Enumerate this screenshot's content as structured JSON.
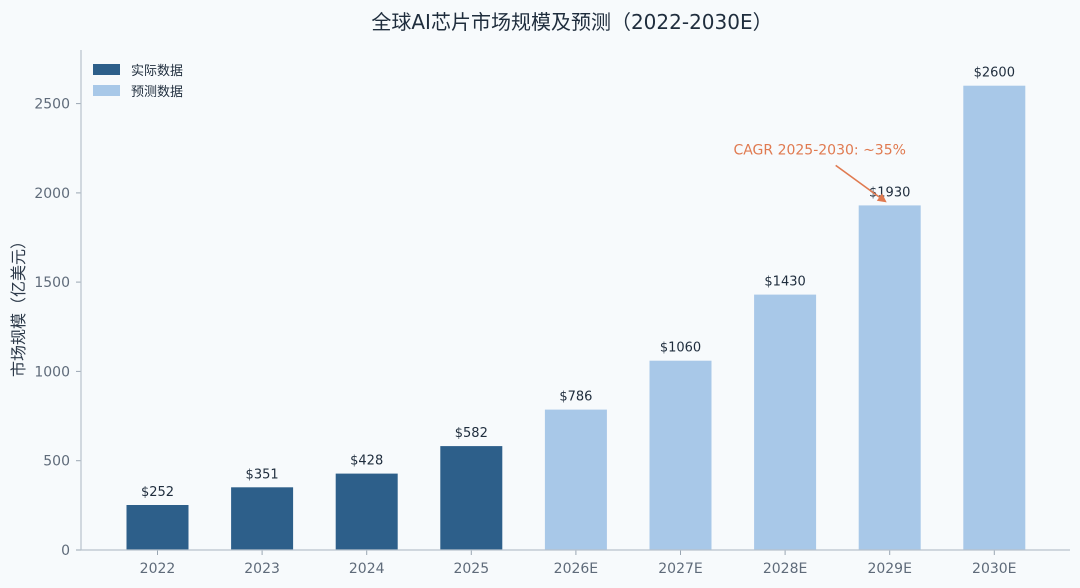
{
  "chart_data": {
    "type": "bar",
    "title": "全球AI芯片市场规模及预测（2022-2030E）",
    "ylabel": "市场规模（亿美元）",
    "xlabel": "",
    "categories": [
      "2022",
      "2023",
      "2024",
      "2025",
      "2026E",
      "2027E",
      "2028E",
      "2029E",
      "2030E"
    ],
    "values": [
      252,
      351,
      428,
      582,
      786,
      1060,
      1430,
      1930,
      2600
    ],
    "value_labels": [
      "$252",
      "$351",
      "$428",
      "$582",
      "$786",
      "$1060",
      "$1430",
      "$1930",
      "$2600"
    ],
    "series_group": [
      "actual",
      "actual",
      "actual",
      "actual",
      "forecast",
      "forecast",
      "forecast",
      "forecast",
      "forecast"
    ],
    "ylim": [
      0,
      2800
    ],
    "yticks": [
      0,
      500,
      1000,
      1500,
      2000,
      2500
    ],
    "ytick_labels": [
      "0",
      "500",
      "1000",
      "1500",
      "2000",
      "2500"
    ],
    "grid": false,
    "legend": {
      "position": "top-left",
      "entries": [
        {
          "key": "actual",
          "label": "实际数据",
          "color": "#2d5f8a"
        },
        {
          "key": "forecast",
          "label": "预测数据",
          "color": "#a8c8e8"
        }
      ]
    },
    "annotation": {
      "text": "CAGR 2025-2030: ~35%",
      "target_category": "2029E",
      "color": "#e07a50"
    }
  }
}
